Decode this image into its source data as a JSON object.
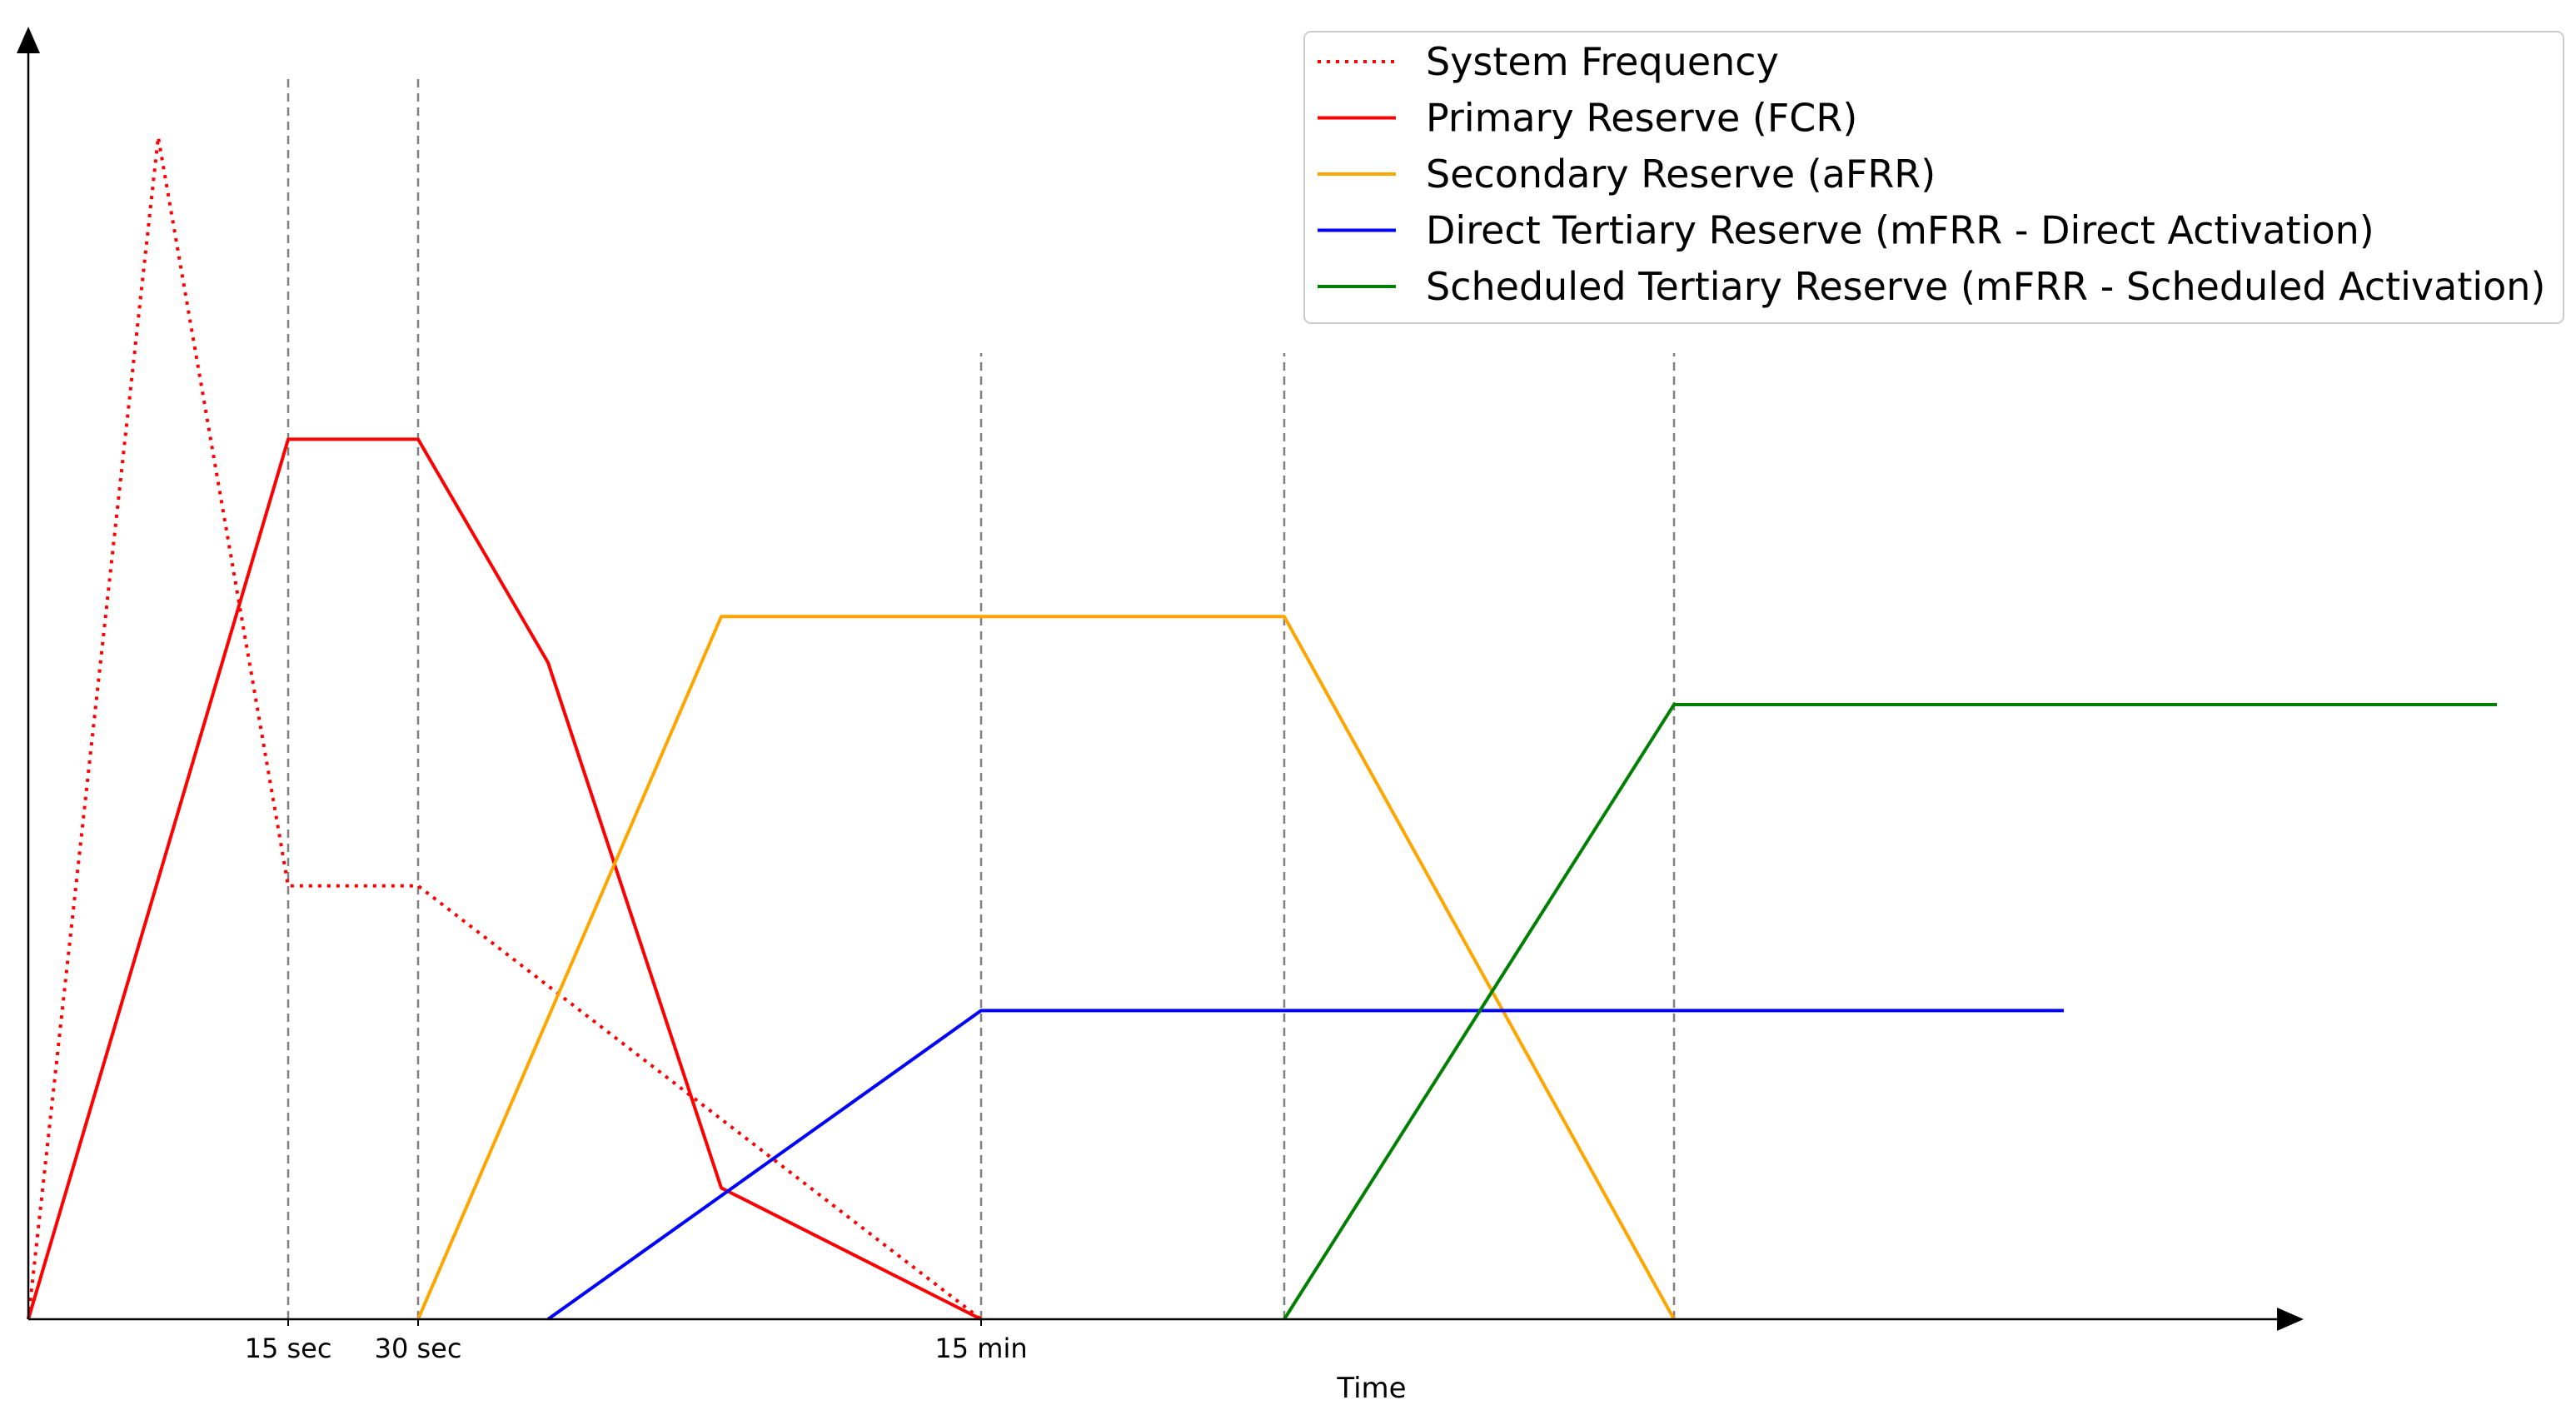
{
  "chart_data": {
    "type": "line",
    "title": "",
    "xlabel": "Time",
    "ylabel": "",
    "xlim": [
      0,
      10
    ],
    "ylim": [
      0,
      10
    ],
    "grid": false,
    "legend": {
      "placement": "upper right"
    },
    "x_ticks": [
      {
        "x": 1.2,
        "label": "15 sec"
      },
      {
        "x": 1.8,
        "label": "30 sec"
      },
      {
        "x": 4.4,
        "label": "15 min"
      }
    ],
    "reference_lines_x_tall": [
      1.2,
      1.8
    ],
    "reference_lines_x_short": [
      4.4,
      5.8,
      7.6
    ],
    "series": [
      {
        "name": "System Frequency",
        "color": "#ff0000",
        "style": "dotted",
        "points": [
          [
            0,
            0
          ],
          [
            0.6,
            9.0
          ],
          [
            1.2,
            3.3
          ],
          [
            1.8,
            3.3
          ],
          [
            4.4,
            0
          ]
        ]
      },
      {
        "name": "Primary Reserve (FCR)",
        "color": "#ff0000",
        "style": "solid",
        "points": [
          [
            0,
            0
          ],
          [
            1.2,
            6.7
          ],
          [
            1.8,
            6.7
          ],
          [
            2.4,
            5.0
          ],
          [
            3.2,
            1.0
          ],
          [
            4.4,
            0
          ]
        ]
      },
      {
        "name": "Secondary Reserve (aFRR)",
        "color": "#ffa500",
        "style": "solid",
        "points": [
          [
            1.8,
            0
          ],
          [
            3.2,
            5.35
          ],
          [
            5.8,
            5.35
          ],
          [
            7.6,
            0
          ]
        ]
      },
      {
        "name": "Direct Tertiary Reserve (mFRR - Direct Activation)",
        "color": "#0000ff",
        "style": "solid",
        "points": [
          [
            2.4,
            0
          ],
          [
            4.4,
            2.35
          ],
          [
            9.4,
            2.35
          ]
        ]
      },
      {
        "name": "Scheduled Tertiary Reserve (mFRR - Scheduled Activation)",
        "color": "#008000",
        "style": "solid",
        "points": [
          [
            5.8,
            0
          ],
          [
            7.6,
            4.68
          ],
          [
            11.4,
            4.68
          ]
        ]
      }
    ]
  }
}
